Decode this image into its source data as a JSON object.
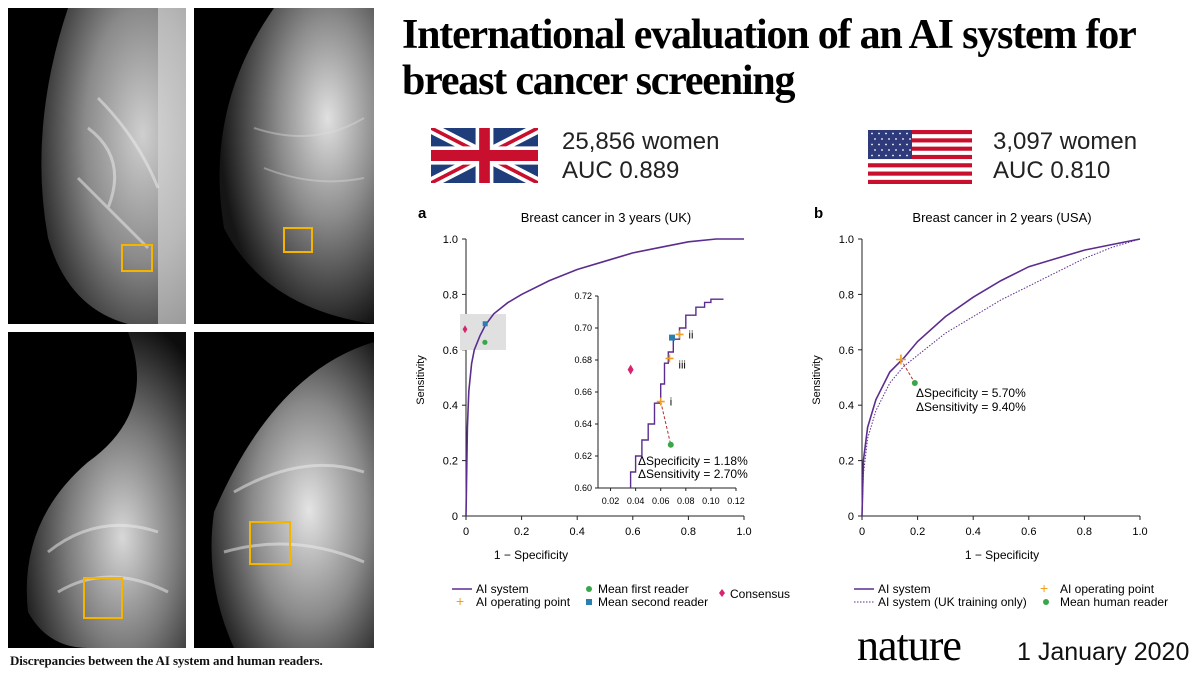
{
  "title": {
    "line1": "International evaluation of an AI system for",
    "line2": "breast cancer screening"
  },
  "uk": {
    "women": "25,856 women",
    "auc": "AUC 0.889"
  },
  "usa": {
    "women": "3,097 women",
    "auc": "AUC 0.810"
  },
  "caption": "Discrepancies between the AI system and human readers.",
  "footer": {
    "brand": "nature",
    "date": "1 January 2020"
  },
  "colors": {
    "ai": "#5b2d8e",
    "op": "#f0a020",
    "mean_reader": "#3aa64a",
    "second_reader": "#2a7fb0",
    "consensus": "#d6246e",
    "box": "#f4b400"
  },
  "chart_data": [
    {
      "type": "line",
      "panel": "a",
      "title": "Breast cancer in 3 years (UK)",
      "xlabel": "1 − Specificity",
      "ylabel": "Sensitivity",
      "xlim": [
        0,
        1
      ],
      "ylim": [
        0,
        1
      ],
      "xticks": [
        "0",
        "0.2",
        "0.4",
        "0.6",
        "0.8",
        "1.0"
      ],
      "yticks": [
        "0",
        "0.2",
        "0.4",
        "0.6",
        "0.8",
        "1.0"
      ],
      "series": [
        {
          "name": "AI system",
          "points": [
            [
              0,
              0
            ],
            [
              0.005,
              0.32
            ],
            [
              0.01,
              0.45
            ],
            [
              0.02,
              0.55
            ],
            [
              0.03,
              0.6
            ],
            [
              0.05,
              0.65
            ],
            [
              0.07,
              0.69
            ],
            [
              0.1,
              0.73
            ],
            [
              0.15,
              0.77
            ],
            [
              0.2,
              0.8
            ],
            [
              0.3,
              0.85
            ],
            [
              0.4,
              0.89
            ],
            [
              0.5,
              0.92
            ],
            [
              0.6,
              0.95
            ],
            [
              0.7,
              0.97
            ],
            [
              0.8,
              0.99
            ],
            [
              0.9,
              1.0
            ],
            [
              1.0,
              1.0
            ]
          ]
        }
      ],
      "markers": [
        {
          "name": "Mean first reader",
          "x": 0.068,
          "y": 0.627
        },
        {
          "name": "Mean second reader",
          "x": 0.069,
          "y": 0.694
        },
        {
          "name": "Consensus",
          "x": 0.036,
          "y": 0.674
        }
      ],
      "inset": {
        "xlim": [
          0.01,
          0.12
        ],
        "ylim": [
          0.6,
          0.72
        ],
        "xticks": [
          "0.02",
          "0.04",
          "0.06",
          "0.08",
          "0.10",
          "0.12"
        ],
        "yticks": [
          "0.60",
          "0.62",
          "0.64",
          "0.66",
          "0.68",
          "0.70",
          "0.72"
        ],
        "curve": [
          [
            0.036,
            0.6
          ],
          [
            0.04,
            0.61
          ],
          [
            0.045,
            0.62
          ],
          [
            0.05,
            0.63
          ],
          [
            0.055,
            0.64
          ],
          [
            0.06,
            0.653
          ],
          [
            0.063,
            0.665
          ],
          [
            0.066,
            0.678
          ],
          [
            0.07,
            0.685
          ],
          [
            0.075,
            0.693
          ],
          [
            0.08,
            0.7
          ],
          [
            0.088,
            0.708
          ],
          [
            0.095,
            0.713
          ],
          [
            0.1,
            0.716
          ],
          [
            0.108,
            0.718
          ],
          [
            0.11,
            0.718
          ]
        ],
        "operating_points": [
          {
            "label": "i",
            "x": 0.06,
            "y": 0.654
          },
          {
            "label": "ii",
            "x": 0.075,
            "y": 0.696
          },
          {
            "label": "iii",
            "x": 0.067,
            "y": 0.681
          }
        ],
        "mean_first_reader": {
          "x": 0.068,
          "y": 0.627
        },
        "mean_second_reader": {
          "x": 0.069,
          "y": 0.694
        },
        "consensus": {
          "x": 0.036,
          "y": 0.674
        },
        "annotation1": "ΔSpecificity = 1.18%",
        "annotation2": "ΔSensitivity = 2.70%"
      },
      "legend": [
        "AI system",
        "AI operating point",
        "Mean first reader",
        "Mean second reader",
        "Consensus"
      ]
    },
    {
      "type": "line",
      "panel": "b",
      "title": "Breast cancer in 2 years (USA)",
      "xlabel": "1 − Specificity",
      "ylabel": "Sensitivity",
      "xlim": [
        0,
        1
      ],
      "ylim": [
        0,
        1
      ],
      "xticks": [
        "0",
        "0.2",
        "0.4",
        "0.6",
        "0.8",
        "1.0"
      ],
      "yticks": [
        "0",
        "0.2",
        "0.4",
        "0.6",
        "0.8",
        "1.0"
      ],
      "series": [
        {
          "name": "AI system",
          "points": [
            [
              0,
              0
            ],
            [
              0.005,
              0.2
            ],
            [
              0.02,
              0.32
            ],
            [
              0.05,
              0.42
            ],
            [
              0.1,
              0.52
            ],
            [
              0.15,
              0.57
            ],
            [
              0.2,
              0.63
            ],
            [
              0.3,
              0.72
            ],
            [
              0.4,
              0.79
            ],
            [
              0.5,
              0.85
            ],
            [
              0.6,
              0.9
            ],
            [
              0.7,
              0.93
            ],
            [
              0.8,
              0.96
            ],
            [
              0.9,
              0.98
            ],
            [
              1.0,
              1.0
            ]
          ]
        },
        {
          "name": "AI system (UK training only)",
          "points": [
            [
              0,
              0
            ],
            [
              0.005,
              0.15
            ],
            [
              0.02,
              0.28
            ],
            [
              0.05,
              0.38
            ],
            [
              0.1,
              0.48
            ],
            [
              0.15,
              0.54
            ],
            [
              0.2,
              0.58
            ],
            [
              0.3,
              0.66
            ],
            [
              0.4,
              0.72
            ],
            [
              0.5,
              0.78
            ],
            [
              0.6,
              0.83
            ],
            [
              0.7,
              0.88
            ],
            [
              0.8,
              0.93
            ],
            [
              0.9,
              0.97
            ],
            [
              1.0,
              1.0
            ]
          ]
        }
      ],
      "operating_point": {
        "x": 0.14,
        "y": 0.565
      },
      "mean_human_reader": {
        "x": 0.19,
        "y": 0.48
      },
      "annotation1": "ΔSpecificity = 5.70%",
      "annotation2": "ΔSensitivity = 9.40%",
      "legend": [
        "AI system",
        "AI system (UK training only)",
        "AI operating point",
        "Mean human reader"
      ]
    }
  ]
}
